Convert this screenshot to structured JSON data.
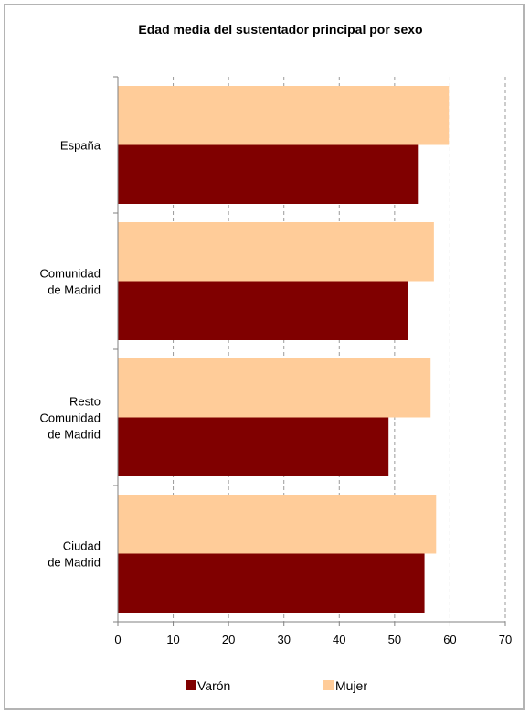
{
  "chart_data": {
    "type": "bar",
    "orientation": "horizontal",
    "title": "Edad media del sustentador principal por sexo",
    "categories": [
      [
        "España"
      ],
      [
        "Comunidad",
        "de Madrid"
      ],
      [
        "Resto",
        "Comunidad",
        "de Madrid"
      ],
      [
        "Ciudad",
        "de Madrid"
      ]
    ],
    "series": [
      {
        "name": "Varón",
        "color": "#800000",
        "values": [
          54.2,
          52.4,
          48.9,
          55.4
        ]
      },
      {
        "name": "Mujer",
        "color": "#FFCC99",
        "values": [
          59.8,
          57.1,
          56.5,
          57.5
        ]
      }
    ],
    "xlim": [
      0,
      70
    ],
    "xticks": [
      "0",
      "10",
      "20",
      "30",
      "40",
      "50",
      "60",
      "70"
    ],
    "grid": "vertical dashed",
    "legend": "bottom"
  }
}
